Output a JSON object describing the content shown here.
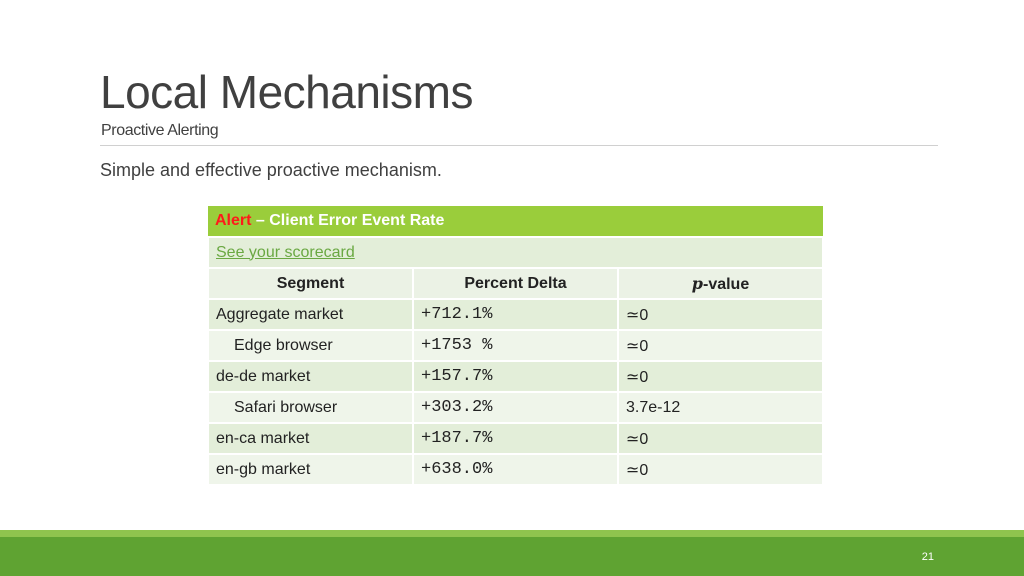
{
  "slide": {
    "title": "Local Mechanisms",
    "subtitle": "Proactive Alerting",
    "body": "Simple and effective proactive mechanism.",
    "page_number": "21"
  },
  "table": {
    "alert_word": "Alert",
    "alert_rest": " – Client Error Event Rate",
    "link_text": "See your scorecard",
    "columns": {
      "segment": "Segment",
      "delta": "Percent Delta",
      "p_italic": "p",
      "p_rest": "-value"
    },
    "rows": [
      {
        "segment": "Aggregate market",
        "delta": "+712.1%",
        "p": "≃0"
      },
      {
        "segment": "Edge browser",
        "delta": "+1753 %",
        "p": "≃0"
      },
      {
        "segment": "de-de market",
        "delta": "+157.7%",
        "p": "≃0"
      },
      {
        "segment": "Safari browser",
        "delta": "+303.2%",
        "p": "3.7e-12"
      },
      {
        "segment": "en-ca market",
        "delta": "+187.7%",
        "p": "≃0"
      },
      {
        "segment": "en-gb market",
        "delta": "+638.0%",
        "p": "≃0"
      }
    ]
  },
  "colors": {
    "header_green": "#9acd3b",
    "footer_green": "#5fa332",
    "alert_red": "#ff1a1a",
    "link_green": "#6aa842"
  }
}
